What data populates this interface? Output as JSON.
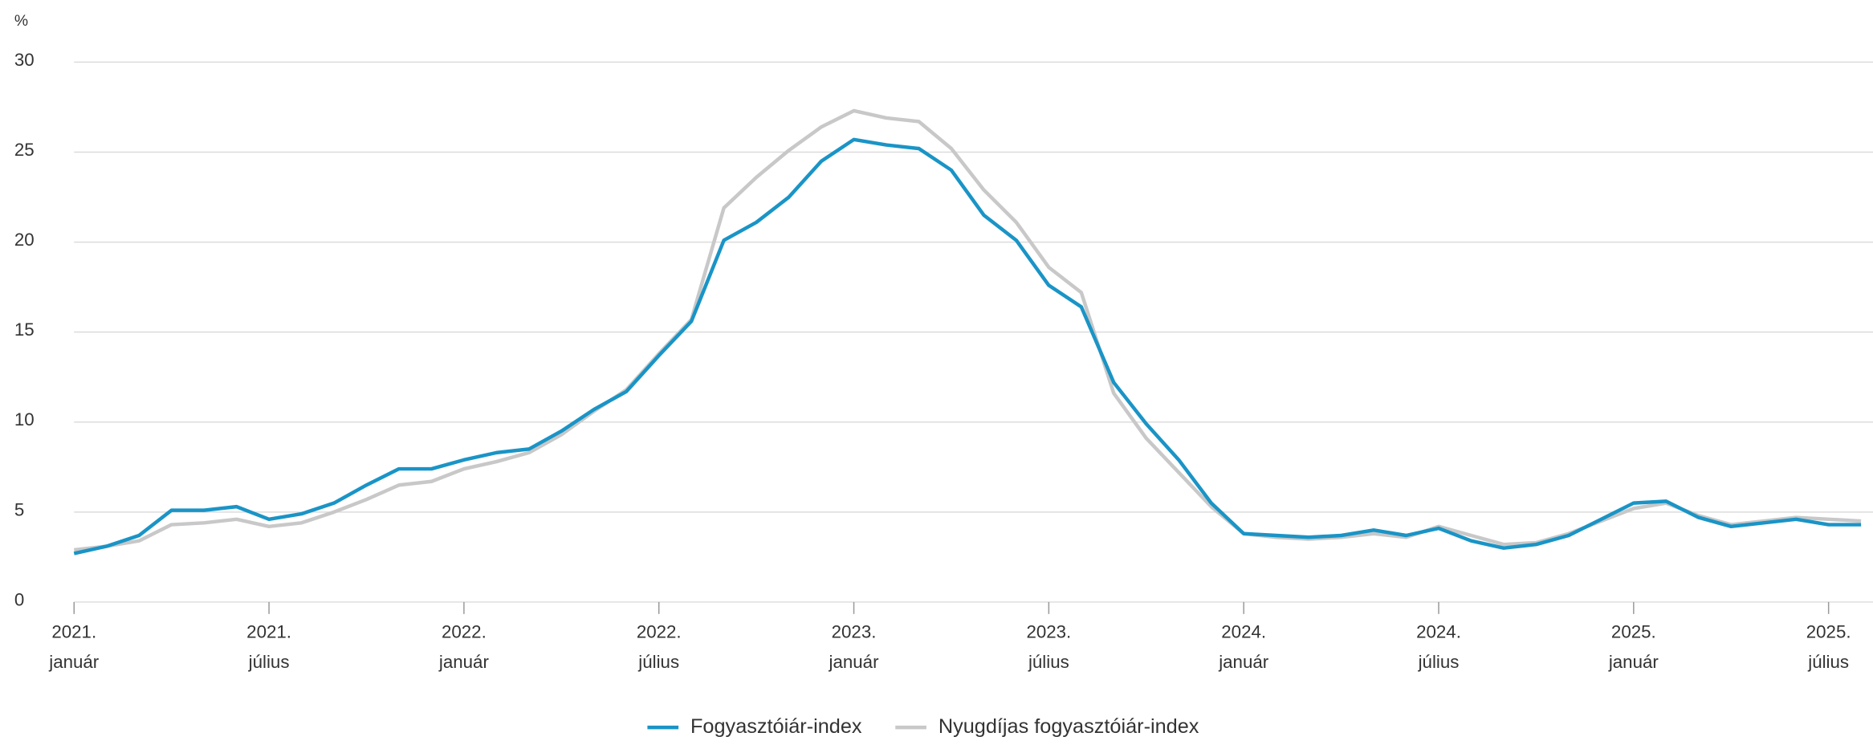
{
  "chart_data": {
    "type": "line",
    "y_label": "%",
    "categories": [
      "2021. január",
      null,
      null,
      null,
      null,
      null,
      "2021. július",
      null,
      null,
      null,
      null,
      null,
      "2022. január",
      null,
      null,
      null,
      null,
      null,
      "2022. július",
      null,
      null,
      null,
      null,
      null,
      "2023. január",
      null,
      null,
      null,
      null,
      null,
      "2023. július",
      null,
      null,
      null,
      null,
      null,
      "2024. január",
      null,
      null,
      null,
      null,
      null,
      "2024. július",
      null,
      null,
      null,
      null,
      null,
      "2025. január",
      null,
      null,
      null,
      null,
      null,
      "2025. július",
      null
    ],
    "series": [
      {
        "name": "Fogyasztóiár-index",
        "color": "#1a94c6",
        "values": [
          2.7,
          3.1,
          3.7,
          5.1,
          5.1,
          5.3,
          4.6,
          4.9,
          5.5,
          6.5,
          7.4,
          7.4,
          7.9,
          8.3,
          8.5,
          9.5,
          10.7,
          11.7,
          13.7,
          15.6,
          20.1,
          21.1,
          22.5,
          24.5,
          25.7,
          25.4,
          25.2,
          24.0,
          21.5,
          20.1,
          17.6,
          16.4,
          12.2,
          9.9,
          7.9,
          5.5,
          3.8,
          3.7,
          3.6,
          3.7,
          4.0,
          3.7,
          4.1,
          3.4,
          3.0,
          3.2,
          3.7,
          4.6,
          5.5,
          5.6,
          4.7,
          4.2,
          4.4,
          4.6,
          4.3,
          4.3
        ]
      },
      {
        "name": "Nyugdíjas fogyasztóiár-index",
        "color": "#c8c8c8",
        "values": [
          2.9,
          3.1,
          3.4,
          4.3,
          4.4,
          4.6,
          4.2,
          4.4,
          5.0,
          5.7,
          6.5,
          6.7,
          7.4,
          7.8,
          8.3,
          9.3,
          10.6,
          11.8,
          13.8,
          15.7,
          21.9,
          23.6,
          25.1,
          26.4,
          27.3,
          26.9,
          26.7,
          25.2,
          22.9,
          21.1,
          18.6,
          17.2,
          11.6,
          9.1,
          7.2,
          5.3,
          3.8,
          3.6,
          3.5,
          3.6,
          3.8,
          3.6,
          4.2,
          3.7,
          3.2,
          3.3,
          3.8,
          4.5,
          5.2,
          5.5,
          4.8,
          4.3,
          4.5,
          4.7,
          4.6,
          4.5
        ]
      }
    ],
    "ylim": [
      0,
      30
    ],
    "yticks": [
      0,
      5,
      10,
      15,
      20,
      25,
      30
    ],
    "grid": true,
    "legend": "bottom"
  }
}
